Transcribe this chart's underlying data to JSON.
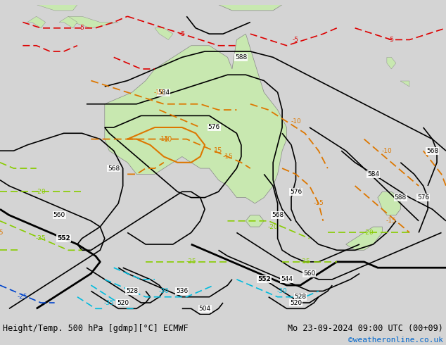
{
  "title_left": "Height/Temp. 500 hPa [gdmp][°C] ECMWF",
  "title_right": "Mo 23-09-2024 09:00 UTC (00+09)",
  "credit": "©weatheronline.co.uk",
  "fig_width": 6.34,
  "fig_height": 4.9,
  "dpi": 100,
  "title_fontsize": 8.5,
  "credit_color": "#0066cc",
  "credit_fontsize": 8,
  "ocean_color": "#e8e8e8",
  "land_color": "#c8e8b0",
  "land_dark_color": "#b0d898",
  "border_color": "#888888",
  "black_contour_color": "#000000",
  "red_temp_color": "#dd0000",
  "orange_temp_color": "#dd7700",
  "green_temp_color": "#88cc00",
  "cyan_temp_color": "#00bbdd",
  "blue_temp_color": "#0044cc"
}
